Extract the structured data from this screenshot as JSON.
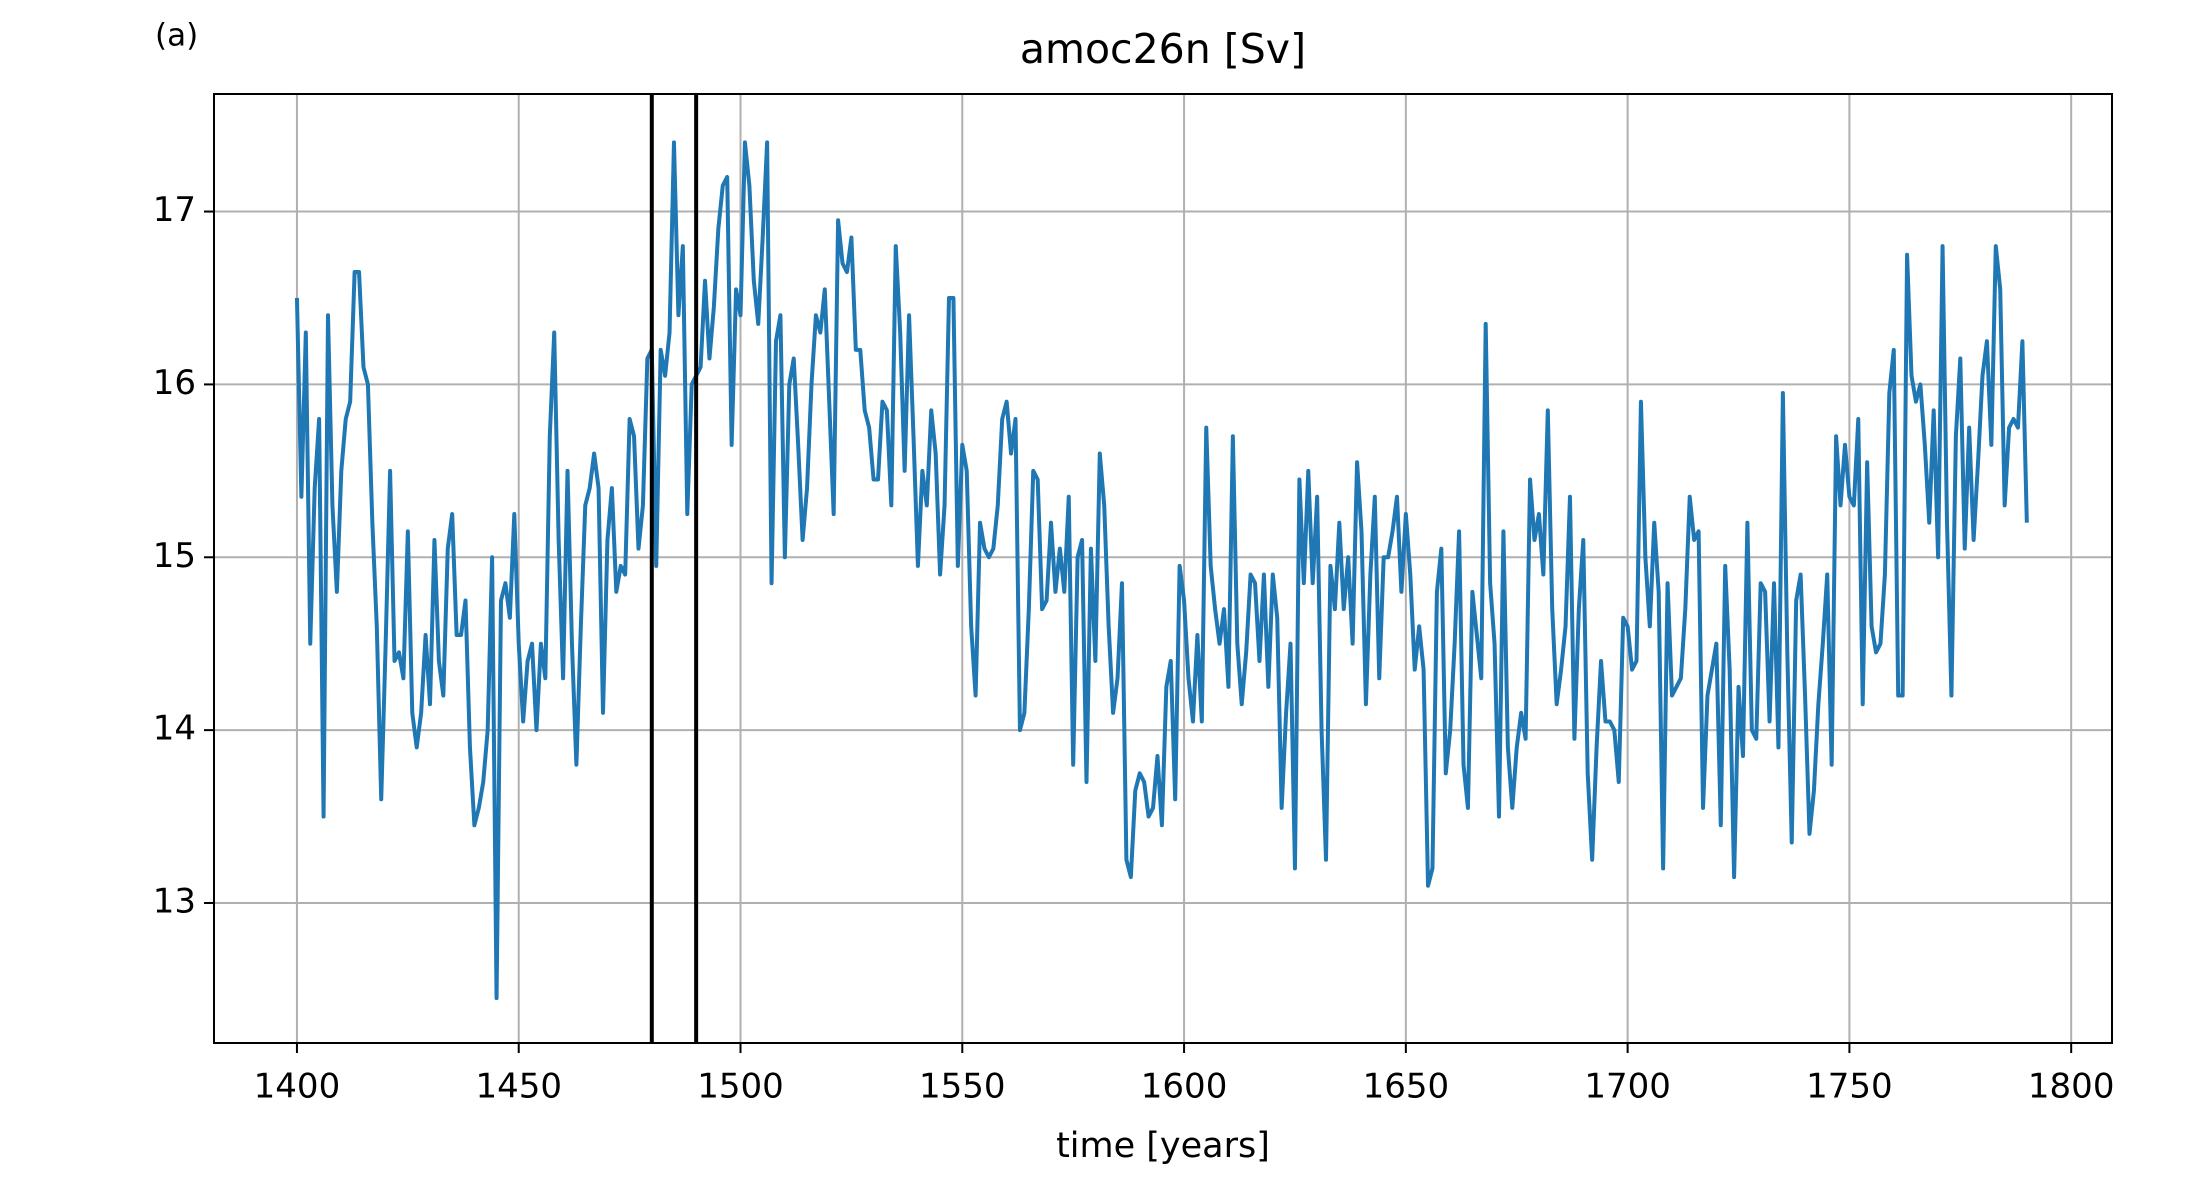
{
  "chart_data": {
    "type": "line",
    "panel_label": "(a)",
    "title": "amoc26n [Sv]",
    "xlabel": "time [years]",
    "x": [
      1400,
      1401,
      1402,
      1403,
      1404,
      1405,
      1406,
      1407,
      1408,
      1409,
      1410,
      1411,
      1412,
      1413,
      1414,
      1415,
      1416,
      1417,
      1418,
      1419,
      1420,
      1421,
      1422,
      1423,
      1424,
      1425,
      1426,
      1427,
      1428,
      1429,
      1430,
      1431,
      1432,
      1433,
      1434,
      1435,
      1436,
      1437,
      1438,
      1439,
      1440,
      1441,
      1442,
      1443,
      1444,
      1445,
      1446,
      1447,
      1448,
      1449,
      1450,
      1451,
      1452,
      1453,
      1454,
      1455,
      1456,
      1457,
      1458,
      1459,
      1460,
      1461,
      1462,
      1463,
      1464,
      1465,
      1466,
      1467,
      1468,
      1469,
      1470,
      1471,
      1472,
      1473,
      1474,
      1475,
      1476,
      1477,
      1478,
      1479,
      1480,
      1481,
      1482,
      1483,
      1484,
      1485,
      1486,
      1487,
      1488,
      1489,
      1490,
      1491,
      1492,
      1493,
      1494,
      1495,
      1496,
      1497,
      1498,
      1499,
      1500,
      1501,
      1502,
      1503,
      1504,
      1505,
      1506,
      1507,
      1508,
      1509,
      1510,
      1511,
      1512,
      1513,
      1514,
      1515,
      1516,
      1517,
      1518,
      1519,
      1520,
      1521,
      1522,
      1523,
      1524,
      1525,
      1526,
      1527,
      1528,
      1529,
      1530,
      1531,
      1532,
      1533,
      1534,
      1535,
      1536,
      1537,
      1538,
      1539,
      1540,
      1541,
      1542,
      1543,
      1544,
      1545,
      1546,
      1547,
      1548,
      1549,
      1550,
      1551,
      1552,
      1553,
      1554,
      1555,
      1556,
      1557,
      1558,
      1559,
      1560,
      1561,
      1562,
      1563,
      1564,
      1565,
      1566,
      1567,
      1568,
      1569,
      1570,
      1571,
      1572,
      1573,
      1574,
      1575,
      1576,
      1577,
      1578,
      1579,
      1580,
      1581,
      1582,
      1583,
      1584,
      1585,
      1586,
      1587,
      1588,
      1589,
      1590,
      1591,
      1592,
      1593,
      1594,
      1595,
      1596,
      1597,
      1598,
      1599,
      1600,
      1601,
      1602,
      1603,
      1604,
      1605,
      1606,
      1607,
      1608,
      1609,
      1610,
      1611,
      1612,
      1613,
      1614,
      1615,
      1616,
      1617,
      1618,
      1619,
      1620,
      1621,
      1622,
      1623,
      1624,
      1625,
      1626,
      1627,
      1628,
      1629,
      1630,
      1631,
      1632,
      1633,
      1634,
      1635,
      1636,
      1637,
      1638,
      1639,
      1640,
      1641,
      1642,
      1643,
      1644,
      1645,
      1646,
      1647,
      1648,
      1649,
      1650,
      1651,
      1652,
      1653,
      1654,
      1655,
      1656,
      1657,
      1658,
      1659,
      1660,
      1661,
      1662,
      1663,
      1664,
      1665,
      1666,
      1667,
      1668,
      1669,
      1670,
      1671,
      1672,
      1673,
      1674,
      1675,
      1676,
      1677,
      1678,
      1679,
      1680,
      1681,
      1682,
      1683,
      1684,
      1685,
      1686,
      1687,
      1688,
      1689,
      1690,
      1691,
      1692,
      1693,
      1694,
      1695,
      1696,
      1697,
      1698,
      1699,
      1700,
      1701,
      1702,
      1703,
      1704,
      1705,
      1706,
      1707,
      1708,
      1709,
      1710,
      1711,
      1712,
      1713,
      1714,
      1715,
      1716,
      1717,
      1718,
      1719,
      1720,
      1721,
      1722,
      1723,
      1724,
      1725,
      1726,
      1727,
      1728,
      1729,
      1730,
      1731,
      1732,
      1733,
      1734,
      1735,
      1736,
      1737,
      1738,
      1739,
      1740,
      1741,
      1742,
      1743,
      1744,
      1745,
      1746,
      1747,
      1748,
      1749,
      1750,
      1751,
      1752,
      1753,
      1754,
      1755,
      1756,
      1757,
      1758,
      1759,
      1760,
      1761,
      1762,
      1763,
      1764,
      1765,
      1766,
      1767,
      1768,
      1769,
      1770,
      1771,
      1772,
      1773,
      1774,
      1775,
      1776,
      1777,
      1778,
      1779,
      1780,
      1781,
      1782,
      1783,
      1784,
      1785,
      1786,
      1787,
      1788,
      1789,
      1790
    ],
    "series": [
      {
        "name": "amoc26n",
        "color": "#1f77b4",
        "values": [
          16.5,
          15.35,
          16.3,
          14.5,
          15.4,
          15.8,
          13.5,
          16.4,
          15.3,
          14.8,
          15.5,
          15.8,
          15.9,
          16.65,
          16.65,
          16.1,
          16.0,
          15.2,
          14.6,
          13.6,
          14.5,
          15.5,
          14.4,
          14.45,
          14.3,
          15.15,
          14.1,
          13.9,
          14.1,
          14.55,
          14.15,
          15.1,
          14.4,
          14.2,
          15.05,
          15.25,
          14.55,
          14.55,
          14.75,
          13.9,
          13.45,
          13.55,
          13.7,
          14.0,
          15.0,
          12.45,
          14.75,
          14.85,
          14.65,
          15.25,
          14.5,
          14.05,
          14.4,
          14.5,
          14.0,
          14.5,
          14.3,
          15.7,
          16.3,
          15.1,
          14.3,
          15.5,
          14.5,
          13.8,
          14.6,
          15.3,
          15.4,
          15.6,
          15.4,
          14.1,
          15.1,
          15.4,
          14.8,
          14.95,
          14.9,
          15.8,
          15.7,
          15.05,
          15.3,
          16.15,
          16.2,
          14.95,
          16.2,
          16.05,
          16.3,
          17.4,
          16.4,
          16.8,
          15.25,
          16.0,
          16.05,
          16.1,
          16.6,
          16.15,
          16.45,
          16.9,
          17.15,
          17.2,
          15.65,
          16.55,
          16.4,
          17.4,
          17.15,
          16.6,
          16.35,
          16.85,
          17.4,
          14.85,
          16.25,
          16.4,
          15.0,
          16.0,
          16.15,
          15.65,
          15.1,
          15.4,
          16.0,
          16.4,
          16.3,
          16.55,
          15.9,
          15.25,
          16.95,
          16.7,
          16.65,
          16.85,
          16.2,
          16.2,
          15.85,
          15.75,
          15.45,
          15.45,
          15.9,
          15.85,
          15.3,
          16.8,
          16.3,
          15.5,
          16.4,
          15.7,
          14.95,
          15.5,
          15.3,
          15.85,
          15.6,
          14.9,
          15.3,
          16.5,
          16.5,
          14.95,
          15.65,
          15.5,
          14.6,
          14.2,
          15.2,
          15.05,
          15.0,
          15.05,
          15.3,
          15.8,
          15.9,
          15.6,
          15.8,
          14.0,
          14.1,
          14.7,
          15.5,
          15.45,
          14.7,
          14.75,
          15.2,
          14.8,
          15.05,
          14.8,
          15.35,
          13.8,
          15.0,
          15.1,
          13.7,
          15.05,
          14.4,
          15.6,
          15.3,
          14.6,
          14.1,
          14.3,
          14.85,
          13.25,
          13.15,
          13.65,
          13.75,
          13.7,
          13.5,
          13.55,
          13.85,
          13.45,
          14.25,
          14.4,
          13.6,
          14.95,
          14.75,
          14.3,
          14.05,
          14.55,
          14.05,
          15.75,
          14.95,
          14.7,
          14.5,
          14.7,
          14.25,
          15.7,
          14.5,
          14.15,
          14.45,
          14.9,
          14.85,
          14.4,
          14.9,
          14.25,
          14.9,
          14.65,
          13.55,
          14.1,
          14.5,
          13.2,
          15.45,
          14.85,
          15.5,
          14.85,
          15.35,
          14.0,
          13.25,
          14.95,
          14.7,
          15.2,
          14.7,
          15.0,
          14.5,
          15.55,
          15.15,
          14.15,
          14.9,
          15.35,
          14.3,
          15.0,
          15.0,
          15.15,
          15.35,
          14.8,
          15.25,
          14.9,
          14.35,
          14.6,
          14.35,
          13.1,
          13.2,
          14.8,
          15.05,
          13.75,
          14.0,
          14.5,
          15.15,
          13.8,
          13.55,
          14.8,
          14.55,
          14.3,
          16.35,
          14.85,
          14.5,
          13.5,
          15.15,
          13.9,
          13.55,
          13.9,
          14.1,
          13.95,
          15.45,
          15.1,
          15.25,
          14.9,
          15.85,
          14.7,
          14.15,
          14.35,
          14.6,
          15.35,
          13.95,
          14.7,
          15.1,
          13.75,
          13.25,
          13.9,
          14.4,
          14.05,
          14.05,
          14.0,
          13.7,
          14.65,
          14.6,
          14.35,
          14.4,
          15.9,
          15.0,
          14.6,
          15.2,
          14.8,
          13.2,
          14.85,
          14.2,
          14.25,
          14.3,
          14.7,
          15.35,
          15.1,
          15.15,
          13.55,
          14.2,
          14.35,
          14.5,
          13.45,
          14.95,
          14.35,
          13.15,
          14.25,
          13.85,
          15.2,
          14.0,
          13.95,
          14.85,
          14.8,
          14.05,
          14.85,
          13.9,
          15.95,
          14.45,
          13.35,
          14.75,
          14.9,
          14.2,
          13.4,
          13.65,
          14.15,
          14.5,
          14.9,
          13.8,
          15.7,
          15.3,
          15.65,
          15.35,
          15.3,
          15.8,
          14.15,
          15.55,
          14.6,
          14.45,
          14.5,
          14.9,
          15.95,
          16.2,
          14.2,
          14.2,
          16.75,
          16.05,
          15.9,
          16.0,
          15.65,
          15.2,
          15.85,
          15.0,
          16.8,
          15.2,
          14.2,
          15.7,
          16.15,
          15.05,
          15.75,
          15.1,
          15.55,
          16.05,
          16.25,
          15.65,
          16.8,
          16.55,
          15.3,
          15.75,
          15.8,
          15.75,
          16.25,
          15.2
        ]
      }
    ],
    "vlines": [
      1480,
      1490
    ],
    "vline_color": "#000000",
    "xlim": [
      1381.3,
      1809.2
    ],
    "xticks": [
      1400,
      1450,
      1500,
      1550,
      1600,
      1650,
      1700,
      1750,
      1800
    ],
    "ylim": [
      12.19,
      17.68
    ],
    "yticks": [
      13,
      14,
      15,
      16,
      17
    ],
    "grid": true
  }
}
